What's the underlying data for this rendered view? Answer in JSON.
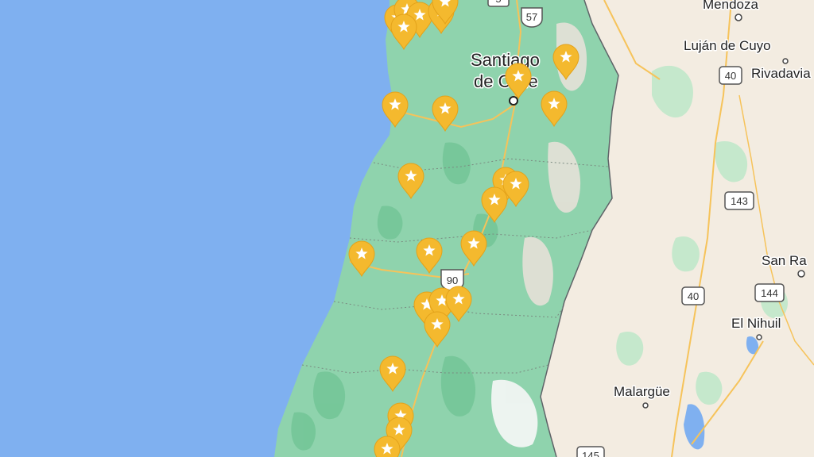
{
  "map": {
    "colors": {
      "ocean": "#7fb0f0",
      "land_chile": "#8fd3ad",
      "land_argentina": "#f3ece1",
      "vegetation": "#b8e3c2",
      "mountain": "#e2ddd2",
      "road": "#f6c35a",
      "pin": "#f4b92e",
      "border": "#5f6368"
    },
    "places": [
      {
        "id": "mendoza",
        "name": "Mendoza"
      },
      {
        "id": "lujan-de-cuyo",
        "name": "Luján de Cuyo"
      },
      {
        "id": "rivadavia",
        "name": "Rivadavia"
      },
      {
        "id": "santiago",
        "name": "Santiago\nde Chile"
      },
      {
        "id": "san-rafael",
        "name": "San Ra"
      },
      {
        "id": "el-nihuil",
        "name": "El Nihuil"
      },
      {
        "id": "malargue",
        "name": "Malargüe"
      }
    ],
    "routes": [
      "57",
      "40",
      "143",
      "144",
      "40",
      "90",
      "145",
      "5"
    ],
    "pins": [
      {
        "icon": "star-icon"
      },
      {
        "icon": "star-icon"
      },
      {
        "icon": "star-icon"
      },
      {
        "icon": "star-icon"
      },
      {
        "icon": "star-icon"
      },
      {
        "icon": "star-icon"
      },
      {
        "icon": "star-icon"
      },
      {
        "icon": "star-icon"
      },
      {
        "icon": "star-icon"
      },
      {
        "icon": "star-icon"
      },
      {
        "icon": "star-icon"
      },
      {
        "icon": "star-icon"
      },
      {
        "icon": "star-icon"
      },
      {
        "icon": "star-icon"
      },
      {
        "icon": "star-icon"
      },
      {
        "icon": "star-icon"
      },
      {
        "icon": "star-icon"
      },
      {
        "icon": "star-icon"
      },
      {
        "icon": "star-icon"
      },
      {
        "icon": "star-icon"
      },
      {
        "icon": "star-icon"
      },
      {
        "icon": "star-icon"
      },
      {
        "icon": "star-icon"
      },
      {
        "icon": "star-icon"
      },
      {
        "icon": "star-icon"
      },
      {
        "icon": "star-icon"
      }
    ]
  }
}
